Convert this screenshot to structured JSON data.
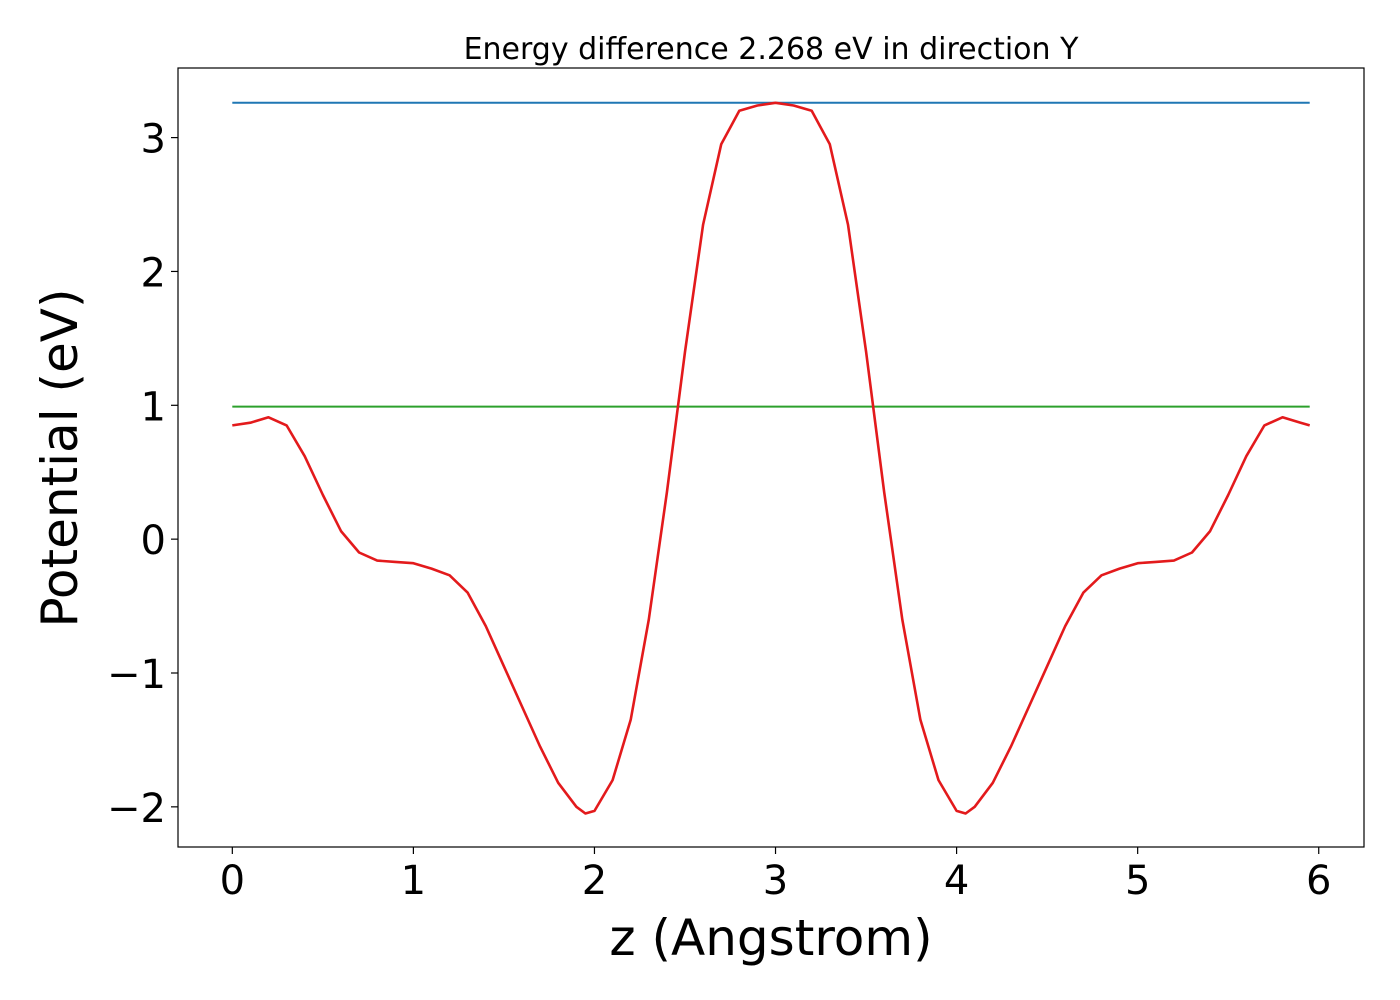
{
  "chart_data": {
    "type": "line",
    "title": "Energy difference 2.268 eV in direction Y",
    "xlabel": "z (Angstrom)",
    "ylabel": "Potential (eV)",
    "xlim": [
      -0.3,
      6.25
    ],
    "ylim": [
      -2.3,
      3.52
    ],
    "xticks": [
      0,
      1,
      2,
      3,
      4,
      5,
      6
    ],
    "xtick_labels": [
      "0",
      "1",
      "2",
      "3",
      "4",
      "5",
      "6"
    ],
    "yticks": [
      -2,
      -1,
      0,
      1,
      2,
      3
    ],
    "ytick_labels": [
      "−2",
      "−1",
      "0",
      "1",
      "2",
      "3"
    ],
    "grid": false,
    "legend": "none",
    "series": [
      {
        "color": "#1f77b4",
        "x": [
          0,
          5.95
        ],
        "y": [
          3.26,
          3.26
        ]
      },
      {
        "color": "#2ca02c",
        "x": [
          0,
          5.95
        ],
        "y": [
          0.99,
          0.99
        ]
      },
      {
        "color": "#e31a1c",
        "x": [
          0.0,
          0.1,
          0.2,
          0.3,
          0.4,
          0.5,
          0.6,
          0.7,
          0.8,
          0.9,
          1.0,
          1.1,
          1.2,
          1.3,
          1.4,
          1.5,
          1.6,
          1.7,
          1.8,
          1.9,
          1.95,
          2.0,
          2.1,
          2.2,
          2.3,
          2.4,
          2.5,
          2.6,
          2.7,
          2.8,
          2.9,
          3.0,
          3.1,
          3.2,
          3.3,
          3.4,
          3.5,
          3.6,
          3.7,
          3.8,
          3.9,
          4.0,
          4.05,
          4.1,
          4.2,
          4.3,
          4.4,
          4.5,
          4.6,
          4.7,
          4.8,
          4.9,
          5.0,
          5.1,
          5.2,
          5.3,
          5.4,
          5.5,
          5.6,
          5.7,
          5.8,
          5.9,
          5.95
        ],
        "y": [
          0.85,
          0.87,
          0.91,
          0.85,
          0.62,
          0.33,
          0.06,
          -0.1,
          -0.16,
          -0.17,
          -0.18,
          -0.22,
          -0.27,
          -0.4,
          -0.65,
          -0.95,
          -1.25,
          -1.55,
          -1.82,
          -2.0,
          -2.05,
          -2.03,
          -1.8,
          -1.35,
          -0.6,
          0.35,
          1.4,
          2.35,
          2.95,
          3.2,
          3.24,
          3.26,
          3.24,
          3.2,
          2.95,
          2.35,
          1.4,
          0.35,
          -0.6,
          -1.35,
          -1.8,
          -2.03,
          -2.05,
          -2.0,
          -1.82,
          -1.55,
          -1.25,
          -0.95,
          -0.65,
          -0.4,
          -0.27,
          -0.22,
          -0.18,
          -0.17,
          -0.16,
          -0.1,
          0.06,
          0.33,
          0.62,
          0.85,
          0.91,
          0.87,
          0.85
        ]
      }
    ]
  }
}
